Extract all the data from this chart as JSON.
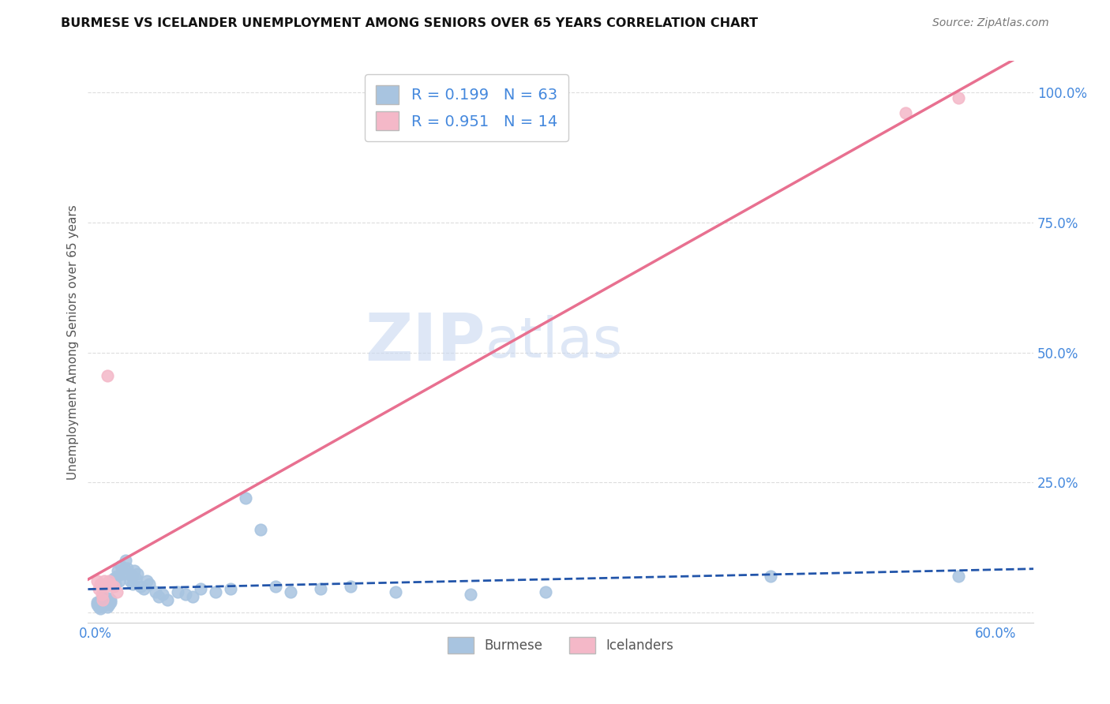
{
  "title": "BURMESE VS ICELANDER UNEMPLOYMENT AMONG SENIORS OVER 65 YEARS CORRELATION CHART",
  "source": "Source: ZipAtlas.com",
  "ylabel": "Unemployment Among Seniors over 65 years",
  "legend_burmese_r": "R = 0.199",
  "legend_burmese_n": "N = 63",
  "legend_icelander_r": "R = 0.951",
  "legend_icelander_n": "N = 14",
  "burmese_color": "#a8c4e0",
  "icelander_color": "#f4b8c8",
  "burmese_line_color": "#2255aa",
  "icelander_line_color": "#e87090",
  "title_color": "#111111",
  "axis_label_color": "#4488dd",
  "watermark_color": "#c8d8f0",
  "background_color": "#ffffff",
  "grid_color": "#dddddd",
  "burmese_scatter_x": [
    0.001,
    0.001,
    0.002,
    0.002,
    0.003,
    0.003,
    0.004,
    0.004,
    0.005,
    0.005,
    0.006,
    0.006,
    0.007,
    0.007,
    0.008,
    0.008,
    0.009,
    0.009,
    0.01,
    0.01,
    0.011,
    0.012,
    0.013,
    0.014,
    0.015,
    0.016,
    0.017,
    0.018,
    0.019,
    0.02,
    0.021,
    0.022,
    0.023,
    0.024,
    0.025,
    0.026,
    0.027,
    0.028,
    0.03,
    0.032,
    0.034,
    0.036,
    0.04,
    0.042,
    0.045,
    0.048,
    0.055,
    0.06,
    0.065,
    0.07,
    0.08,
    0.09,
    0.1,
    0.11,
    0.12,
    0.13,
    0.15,
    0.17,
    0.2,
    0.25,
    0.3,
    0.45,
    0.575
  ],
  "burmese_scatter_y": [
    0.02,
    0.015,
    0.018,
    0.01,
    0.022,
    0.008,
    0.025,
    0.012,
    0.03,
    0.015,
    0.02,
    0.025,
    0.015,
    0.018,
    0.022,
    0.01,
    0.028,
    0.015,
    0.02,
    0.025,
    0.06,
    0.065,
    0.055,
    0.07,
    0.08,
    0.06,
    0.09,
    0.075,
    0.085,
    0.1,
    0.085,
    0.075,
    0.06,
    0.07,
    0.055,
    0.08,
    0.065,
    0.075,
    0.05,
    0.045,
    0.06,
    0.055,
    0.04,
    0.03,
    0.035,
    0.025,
    0.04,
    0.035,
    0.03,
    0.045,
    0.04,
    0.045,
    0.22,
    0.16,
    0.05,
    0.04,
    0.045,
    0.05,
    0.04,
    0.035,
    0.04,
    0.07,
    0.07
  ],
  "icelander_scatter_x": [
    0.001,
    0.002,
    0.003,
    0.004,
    0.005,
    0.006,
    0.007,
    0.008,
    0.009,
    0.01,
    0.012,
    0.014,
    0.54,
    0.575
  ],
  "icelander_scatter_y": [
    0.06,
    0.045,
    0.055,
    0.035,
    0.025,
    0.06,
    0.05,
    0.455,
    0.06,
    0.055,
    0.05,
    0.04,
    0.96,
    0.99
  ],
  "xlim": [
    -0.005,
    0.625
  ],
  "ylim": [
    -0.02,
    1.06
  ],
  "ytick_vals": [
    0.0,
    0.25,
    0.5,
    0.75,
    1.0
  ],
  "ytick_labels": [
    "",
    "25.0%",
    "50.0%",
    "75.0%",
    "100.0%"
  ],
  "xtick_vals": [
    0.0,
    0.1,
    0.2,
    0.3,
    0.4,
    0.5,
    0.6
  ],
  "xtick_labels": [
    "0.0%",
    "",
    "",
    "",
    "",
    "",
    "60.0%"
  ]
}
